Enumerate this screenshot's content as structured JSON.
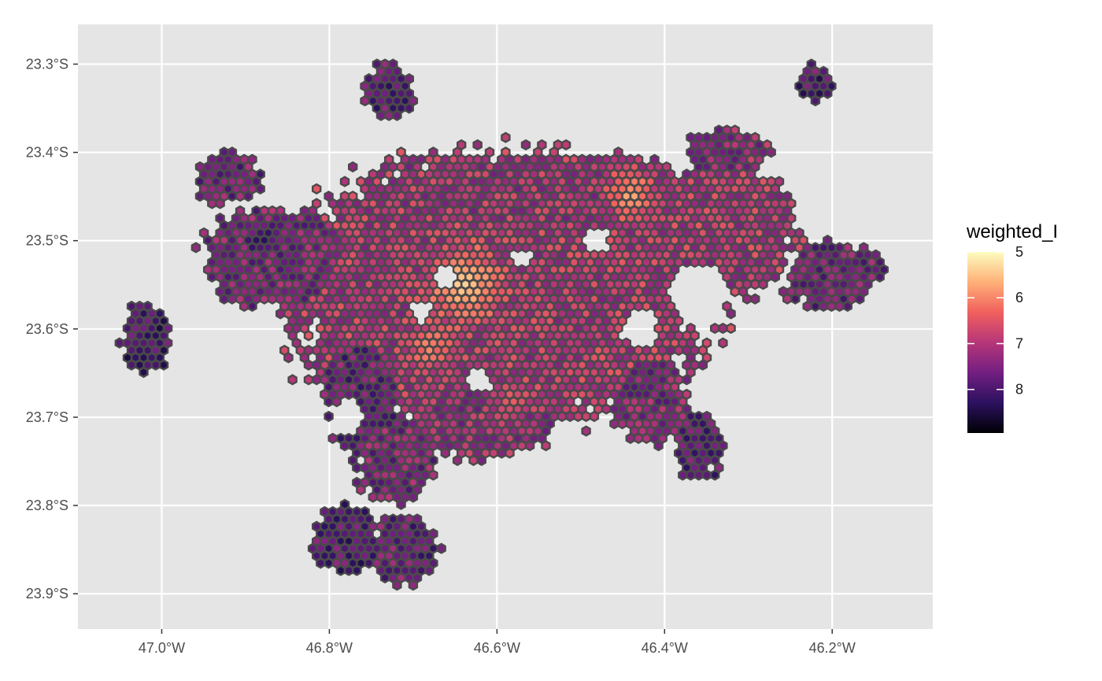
{
  "map": {
    "type": "hexbin-choropleth",
    "background_color": "#e5e5e5",
    "grid_color": "#ffffff",
    "hex_outline_color": "#4a4a4a",
    "grid": true,
    "x_ticks": [
      {
        "lon": -47.0,
        "label": "47.0°W"
      },
      {
        "lon": -46.8,
        "label": "46.8°W"
      },
      {
        "lon": -46.6,
        "label": "46.6°W"
      },
      {
        "lon": -46.4,
        "label": "46.4°W"
      },
      {
        "lon": -46.2,
        "label": "46.2°W"
      }
    ],
    "y_ticks": [
      {
        "lat": -23.3,
        "label": "23.3°S"
      },
      {
        "lat": -23.4,
        "label": "23.4°S"
      },
      {
        "lat": -23.5,
        "label": "23.5°S"
      },
      {
        "lat": -23.6,
        "label": "23.6°S"
      },
      {
        "lat": -23.7,
        "label": "23.7°S"
      },
      {
        "lat": -23.8,
        "label": "23.8°S"
      },
      {
        "lat": -23.9,
        "label": "23.9°S"
      }
    ],
    "xlim": [
      -47.1,
      -46.08
    ],
    "ylim": [
      -23.94,
      -23.255
    ],
    "hex_spacing_deg": 0.0096,
    "regions": [
      {
        "name": "city-core",
        "lon": -46.6,
        "lat": -23.56,
        "rx": 0.26,
        "ry": 0.16,
        "value": 7.0
      },
      {
        "name": "west-lobe",
        "lon": -46.86,
        "lat": -23.52,
        "rx": 0.09,
        "ry": 0.06,
        "value": 7.5
      },
      {
        "name": "north-band",
        "lon": -46.55,
        "lat": -23.45,
        "rx": 0.22,
        "ry": 0.05,
        "value": 7.1
      },
      {
        "name": "east-lobe",
        "lon": -46.33,
        "lat": -23.49,
        "rx": 0.09,
        "ry": 0.08,
        "value": 7.0
      },
      {
        "name": "southwest",
        "lon": -46.76,
        "lat": -23.67,
        "rx": 0.05,
        "ry": 0.07,
        "value": 7.7
      },
      {
        "name": "south-center",
        "lon": -46.62,
        "lat": -23.7,
        "rx": 0.09,
        "ry": 0.05,
        "value": 7.2
      },
      {
        "name": "south-tail",
        "lon": -46.72,
        "lat": -23.75,
        "rx": 0.05,
        "ry": 0.05,
        "value": 7.5
      },
      {
        "name": "southeast",
        "lon": -46.42,
        "lat": -23.68,
        "rx": 0.05,
        "ry": 0.05,
        "value": 7.4
      },
      {
        "name": "far-southeast",
        "lon": -46.36,
        "lat": -23.73,
        "rx": 0.03,
        "ry": 0.04,
        "value": 7.8
      },
      {
        "name": "east-arm",
        "lon": -46.2,
        "lat": -23.54,
        "rx": 0.06,
        "ry": 0.04,
        "value": 7.6
      },
      {
        "name": "north-spur",
        "lon": -46.73,
        "lat": -23.33,
        "rx": 0.03,
        "ry": 0.03,
        "value": 7.8
      },
      {
        "name": "northwest-cluster",
        "lon": -46.92,
        "lat": -23.43,
        "rx": 0.04,
        "ry": 0.03,
        "value": 7.6
      },
      {
        "name": "northeast-top",
        "lon": -46.32,
        "lat": -23.4,
        "rx": 0.05,
        "ry": 0.03,
        "value": 7.3
      },
      {
        "name": "far-west-cluster",
        "lon": -47.02,
        "lat": -23.61,
        "rx": 0.03,
        "ry": 0.04,
        "value": 8.0
      },
      {
        "name": "far-northeast",
        "lon": -46.22,
        "lat": -23.32,
        "rx": 0.02,
        "ry": 0.02,
        "value": 7.9
      },
      {
        "name": "south-islands",
        "lon": -46.78,
        "lat": -23.84,
        "rx": 0.04,
        "ry": 0.04,
        "value": 7.9
      },
      {
        "name": "south-center-islands",
        "lon": -46.71,
        "lat": -23.85,
        "rx": 0.04,
        "ry": 0.04,
        "value": 7.7
      }
    ],
    "hotspots": [
      {
        "lon": -46.64,
        "lat": -23.55,
        "r": 0.06,
        "value": 5.3
      },
      {
        "lon": -46.44,
        "lat": -23.45,
        "r": 0.04,
        "value": 5.6
      },
      {
        "lon": -46.68,
        "lat": -23.62,
        "r": 0.035,
        "value": 5.9
      },
      {
        "lon": -46.88,
        "lat": -23.5,
        "r": 0.025,
        "value": 8.4
      },
      {
        "lon": -46.58,
        "lat": -23.68,
        "r": 0.03,
        "value": 6.3
      }
    ],
    "holes": [
      {
        "lon": -46.57,
        "lat": -23.52,
        "r": 0.012
      },
      {
        "lon": -46.36,
        "lat": -23.56,
        "r": 0.035
      },
      {
        "lon": -46.43,
        "lat": -23.6,
        "r": 0.022
      },
      {
        "lon": -46.48,
        "lat": -23.5,
        "r": 0.015
      },
      {
        "lon": -46.69,
        "lat": -23.58,
        "r": 0.014
      },
      {
        "lon": -46.66,
        "lat": -23.54,
        "r": 0.012
      },
      {
        "lon": -46.62,
        "lat": -23.66,
        "r": 0.014
      },
      {
        "lon": -46.78,
        "lat": -23.7,
        "r": 0.02
      },
      {
        "lon": -46.52,
        "lat": -23.72,
        "r": 0.02
      }
    ]
  },
  "legend": {
    "title": "weighted_I",
    "scale": "magma-reversed",
    "range": [
      7.1,
      8.9
    ],
    "ticks": [
      {
        "value": 5,
        "label": "5"
      },
      {
        "value": 6,
        "label": "6"
      },
      {
        "value": 7,
        "label": "7"
      },
      {
        "value": 8,
        "label": "8"
      }
    ],
    "domain": [
      5,
      8.95
    ],
    "colors": [
      "#fcfdbf",
      "#feb078",
      "#f1605d",
      "#b63679",
      "#721f81",
      "#2c115f",
      "#000004"
    ]
  }
}
